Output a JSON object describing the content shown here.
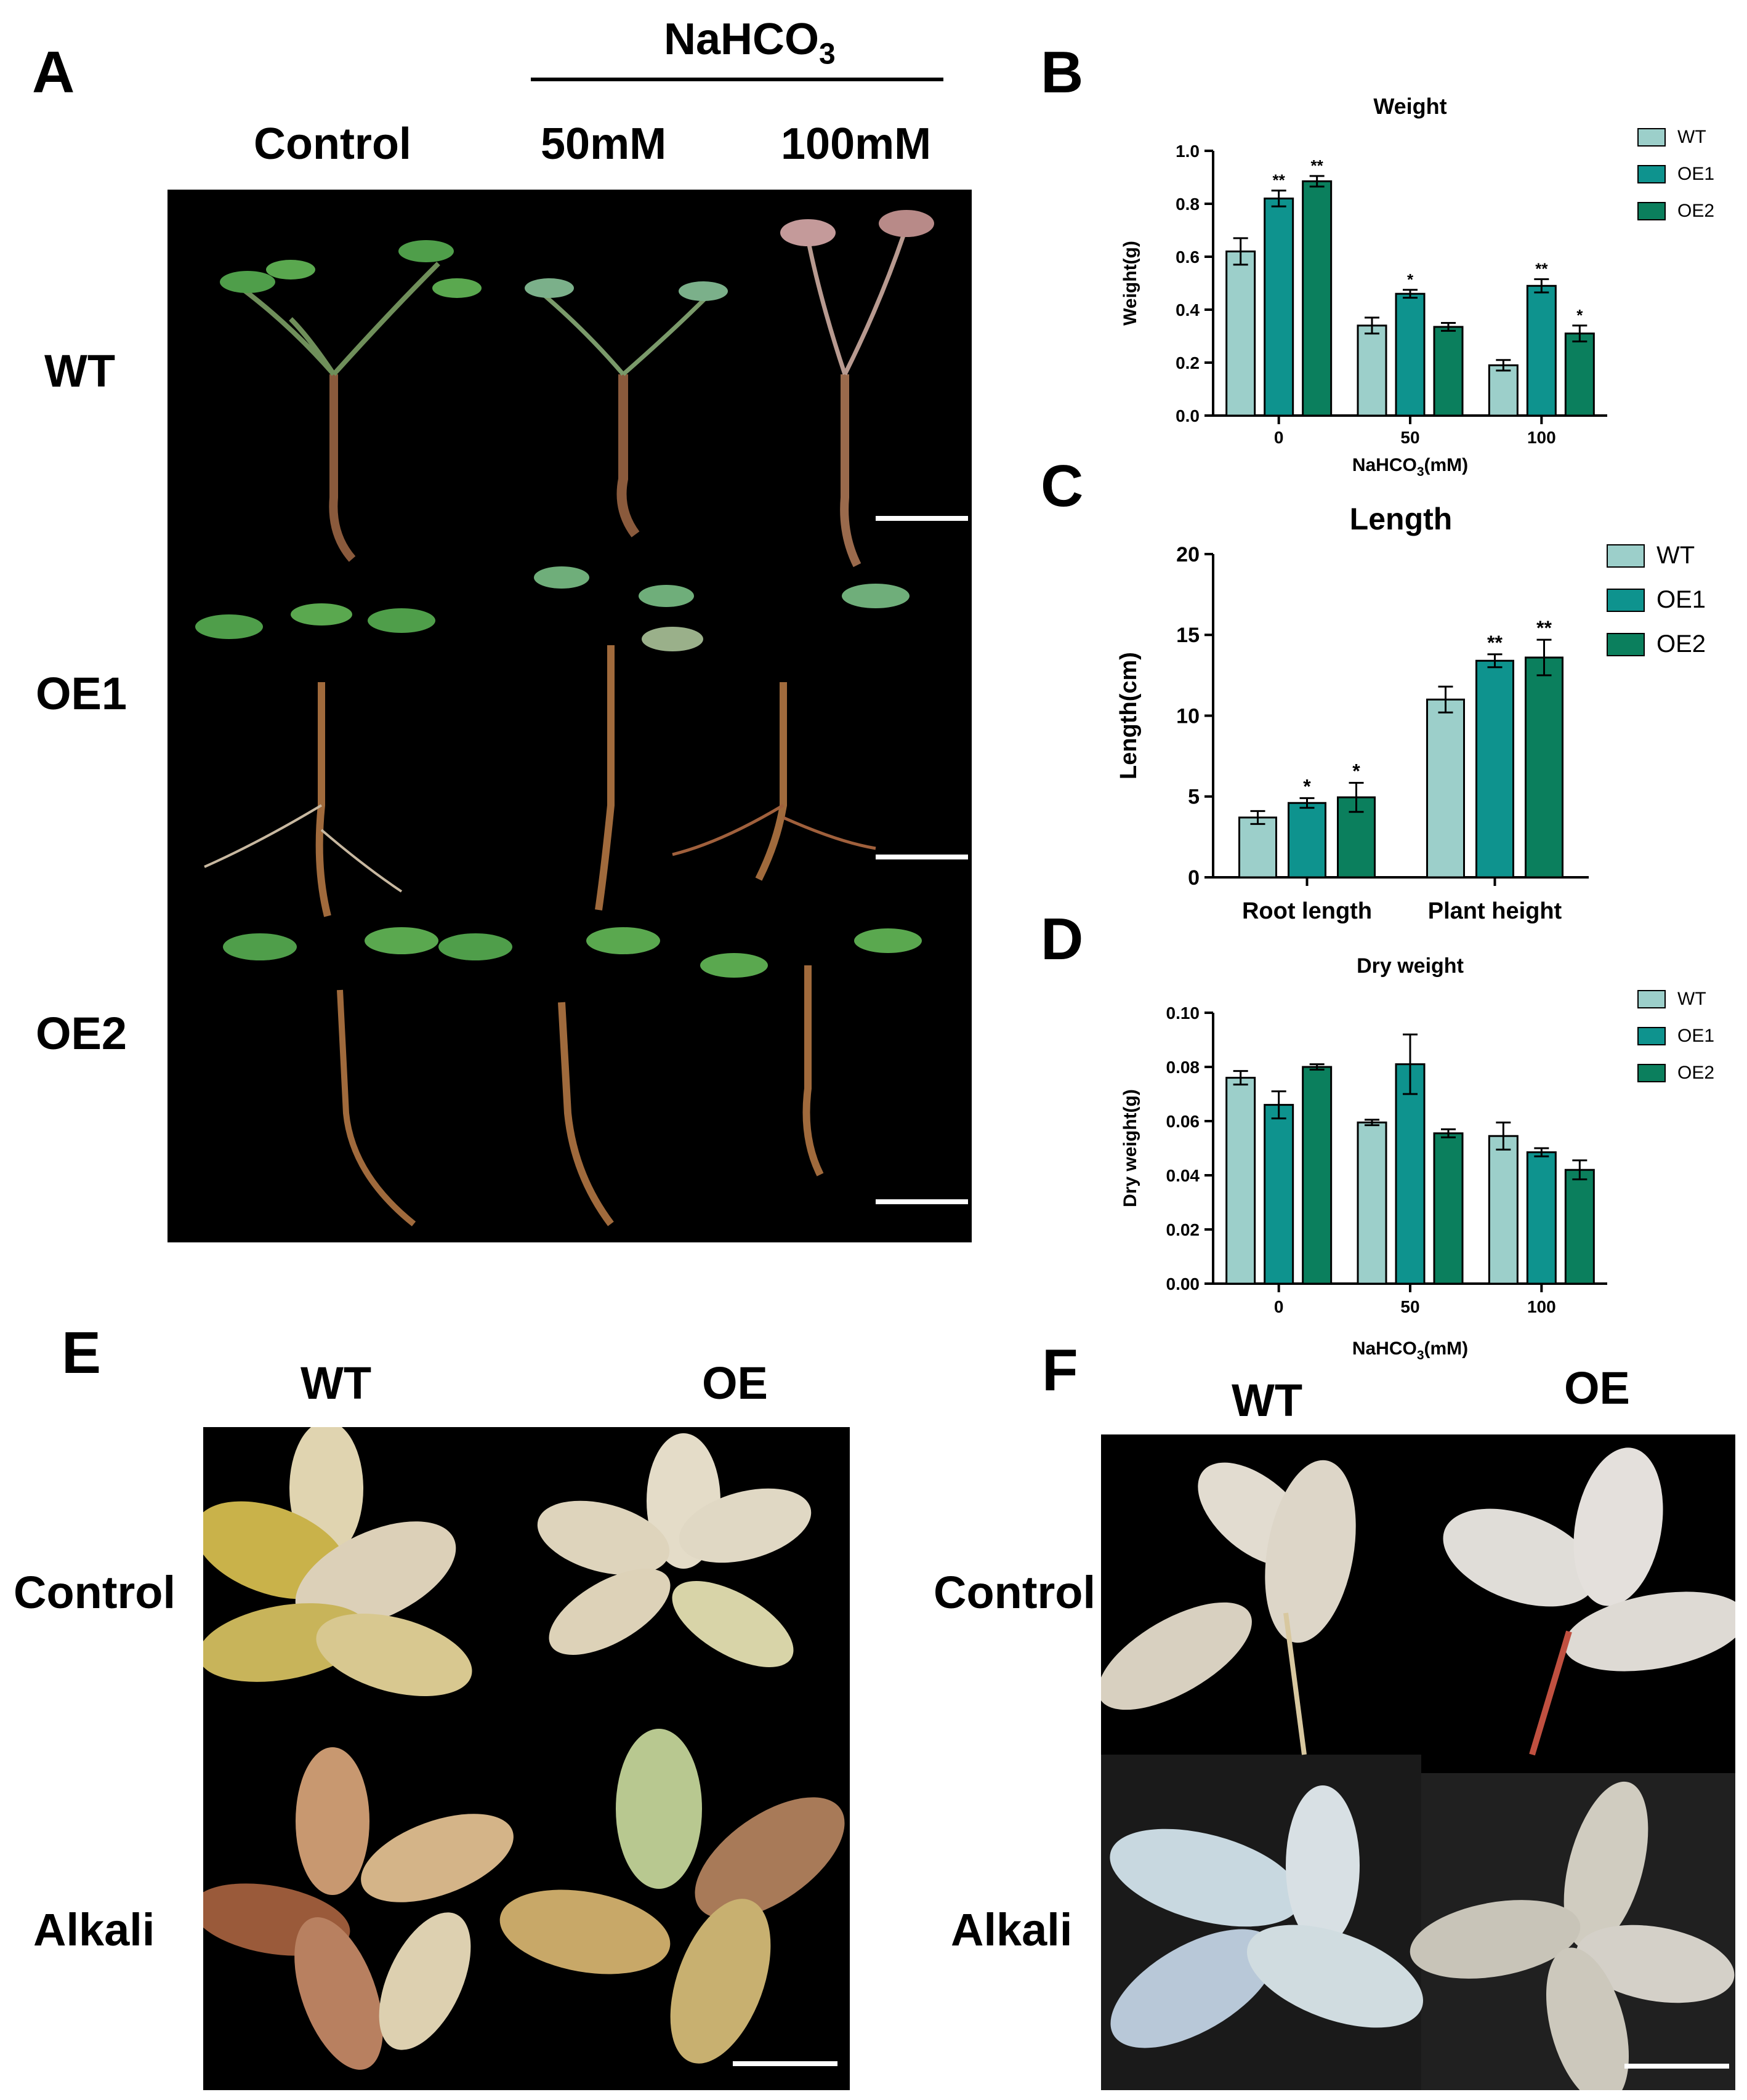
{
  "panel_labels": {
    "A": "A",
    "B": "B",
    "C": "C",
    "D": "D",
    "E": "E",
    "F": "F"
  },
  "panel_a": {
    "treatment_main": "NaHCO",
    "treatment_sub": "3",
    "col_control": "Control",
    "col_50": "50mM",
    "col_100": "100mM",
    "row_wt": "WT",
    "row_oe1": "OE1",
    "row_oe2": "OE2"
  },
  "panel_e": {
    "col_wt": "WT",
    "col_oe": "OE",
    "row_control": "Control",
    "row_alkali": "Alkali"
  },
  "panel_f": {
    "col_wt": "WT",
    "col_oe": "OE",
    "row_control": "Control",
    "row_alkali": "Alkali"
  },
  "colors": {
    "WT": "#9ccfca",
    "OE1": "#0e938e",
    "OE2": "#0b7f5d"
  },
  "chart_data": [
    {
      "id": "B",
      "type": "bar",
      "title": "Weight",
      "ylabel": "Weight(g)",
      "xlabel_main": "NaHCO",
      "xlabel_sub": "3",
      "xlabel_tail": "(mM)",
      "categories": [
        "0",
        "50",
        "100"
      ],
      "ylim": [
        0,
        1.0
      ],
      "yticks": [
        "0.0",
        "0.2",
        "0.4",
        "0.6",
        "0.8",
        "1.0"
      ],
      "legend_position": "top-right",
      "series": [
        {
          "name": "WT",
          "values": [
            0.62,
            0.34,
            0.19
          ],
          "errors": [
            0.05,
            0.03,
            0.02
          ],
          "sig": [
            "",
            "",
            ""
          ]
        },
        {
          "name": "OE1",
          "values": [
            0.82,
            0.46,
            0.49
          ],
          "errors": [
            0.03,
            0.015,
            0.025
          ],
          "sig": [
            "**",
            "*",
            "**"
          ]
        },
        {
          "name": "OE2",
          "values": [
            0.885,
            0.335,
            0.31
          ],
          "errors": [
            0.02,
            0.015,
            0.03
          ],
          "sig": [
            "**",
            "",
            "*"
          ]
        }
      ]
    },
    {
      "id": "C",
      "type": "bar",
      "title": "Length",
      "ylabel": "Length(cm)",
      "categories": [
        "Root length",
        "Plant height"
      ],
      "ylim": [
        0,
        20
      ],
      "yticks": [
        "0",
        "5",
        "10",
        "15",
        "20"
      ],
      "legend_position": "top-right",
      "series": [
        {
          "name": "WT",
          "values": [
            3.7,
            11.0
          ],
          "errors": [
            0.4,
            0.8
          ],
          "sig": [
            "",
            ""
          ]
        },
        {
          "name": "OE1",
          "values": [
            4.6,
            13.4
          ],
          "errors": [
            0.3,
            0.4
          ],
          "sig": [
            "*",
            "**"
          ]
        },
        {
          "name": "OE2",
          "values": [
            4.95,
            13.6
          ],
          "errors": [
            0.9,
            1.1
          ],
          "sig": [
            "*",
            "**"
          ]
        }
      ]
    },
    {
      "id": "D",
      "type": "bar",
      "title": "Dry weight",
      "ylabel": "Dry weight(g)",
      "xlabel_main": "NaHCO",
      "xlabel_sub": "3",
      "xlabel_tail": "(mM)",
      "categories": [
        "0",
        "50",
        "100"
      ],
      "ylim": [
        0,
        0.1
      ],
      "yticks": [
        "0.00",
        "0.02",
        "0.04",
        "0.06",
        "0.08",
        "0.10"
      ],
      "legend_position": "top-right",
      "series": [
        {
          "name": "WT",
          "values": [
            0.076,
            0.0595,
            0.0545
          ],
          "errors": [
            0.0025,
            0.001,
            0.005
          ],
          "sig": [
            "",
            "",
            ""
          ]
        },
        {
          "name": "OE1",
          "values": [
            0.066,
            0.081,
            0.0485
          ],
          "errors": [
            0.005,
            0.011,
            0.0015
          ],
          "sig": [
            "",
            "",
            ""
          ]
        },
        {
          "name": "OE2",
          "values": [
            0.08,
            0.0555,
            0.042
          ],
          "errors": [
            0.001,
            0.0015,
            0.0035
          ],
          "sig": [
            "",
            "",
            ""
          ]
        }
      ]
    }
  ]
}
